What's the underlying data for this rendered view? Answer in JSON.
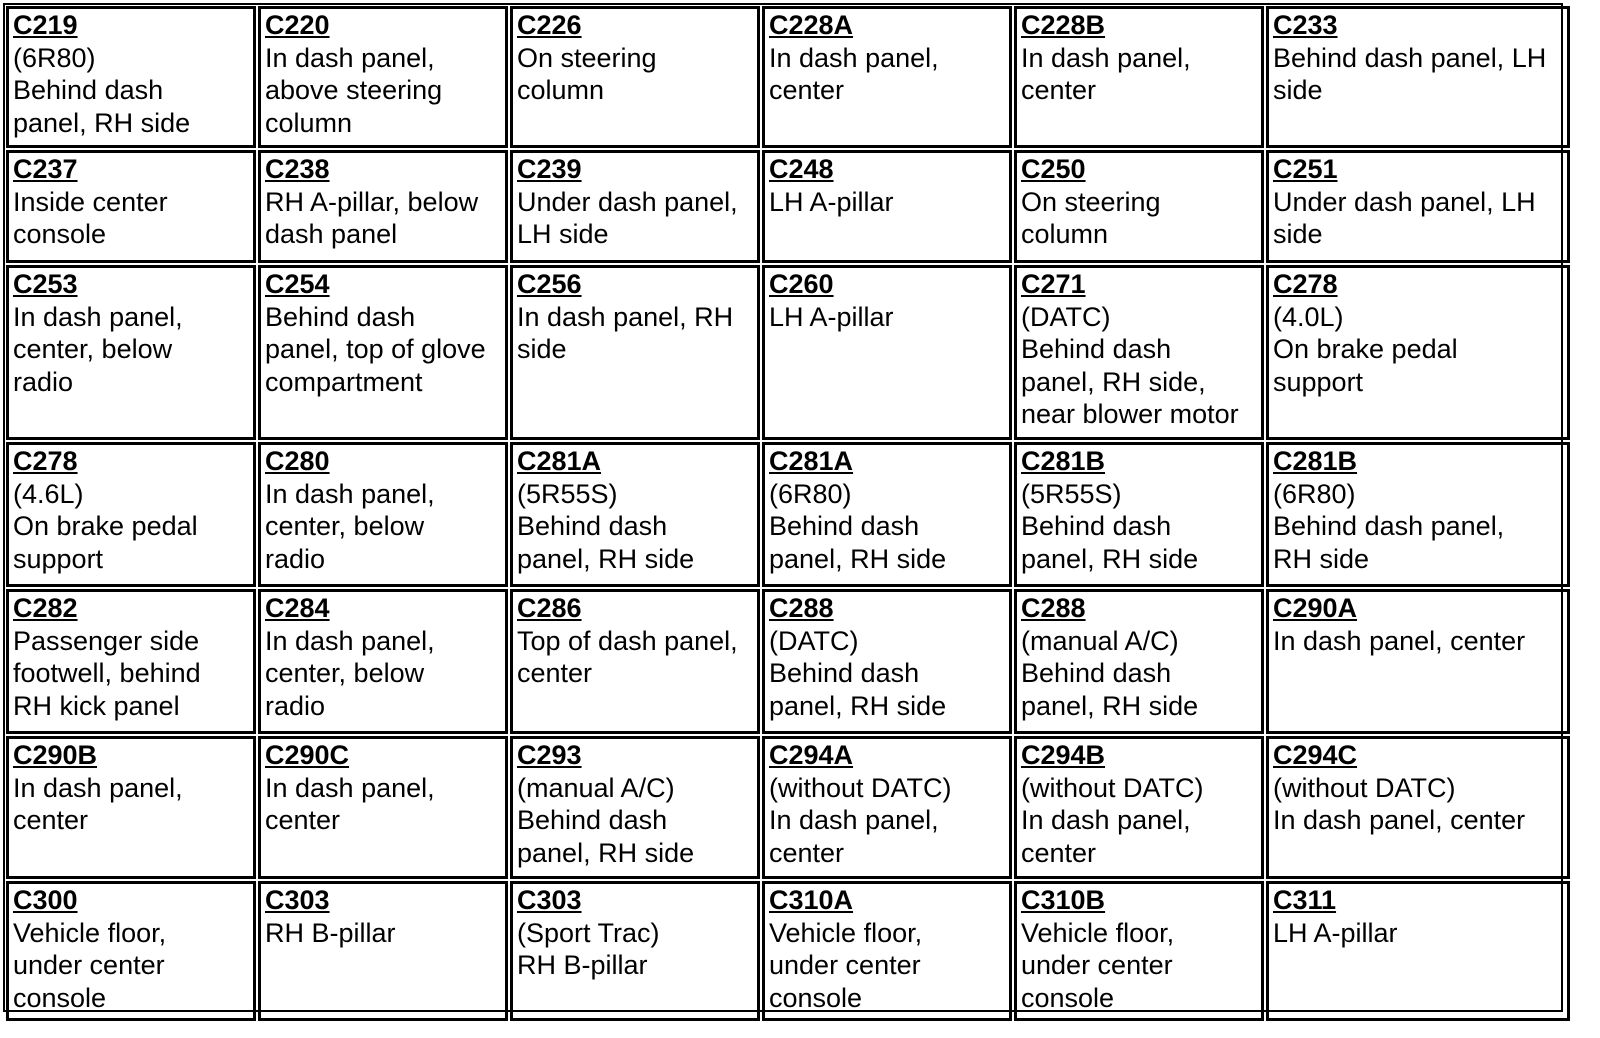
{
  "cells": [
    {
      "id": "C219",
      "lines": [
        "(6R80)",
        "Behind dash",
        "panel, RH side"
      ]
    },
    {
      "id": "C220",
      "lines": [
        "In dash panel,",
        "above steering",
        "column"
      ]
    },
    {
      "id": "C226",
      "lines": [
        "On steering",
        "column"
      ]
    },
    {
      "id": "C228A",
      "lines": [
        "In dash panel,",
        "center"
      ]
    },
    {
      "id": "C228B",
      "lines": [
        "In dash panel,",
        "center"
      ]
    },
    {
      "id": "C233",
      "lines": [
        "Behind dash panel, LH",
        "side"
      ]
    },
    {
      "id": "C237",
      "lines": [
        "Inside center",
        "console"
      ]
    },
    {
      "id": "C238",
      "lines": [
        "RH A-pillar, below",
        "dash panel"
      ]
    },
    {
      "id": "C239",
      "lines": [
        "Under dash panel,",
        "LH side"
      ]
    },
    {
      "id": "C248",
      "lines": [
        "LH A-pillar"
      ]
    },
    {
      "id": "C250",
      "lines": [
        "On steering",
        "column"
      ]
    },
    {
      "id": "C251",
      "lines": [
        "Under dash panel, LH",
        "side"
      ]
    },
    {
      "id": "C253",
      "lines": [
        "In dash panel,",
        "center, below",
        "radio"
      ]
    },
    {
      "id": "C254",
      "lines": [
        "Behind dash",
        "panel, top of glove",
        "compartment"
      ]
    },
    {
      "id": "C256",
      "lines": [
        "In dash panel, RH",
        "side"
      ]
    },
    {
      "id": "C260",
      "lines": [
        "LH A-pillar"
      ]
    },
    {
      "id": "C271",
      "lines": [
        "(DATC)",
        "Behind dash",
        "panel, RH side,",
        "near blower motor"
      ]
    },
    {
      "id": "C278",
      "lines": [
        "(4.0L)",
        "On brake pedal",
        "support"
      ]
    },
    {
      "id": "C278",
      "lines": [
        "(4.6L)",
        "On brake pedal",
        "support"
      ]
    },
    {
      "id": "C280",
      "lines": [
        "In dash panel,",
        "center, below",
        "radio"
      ]
    },
    {
      "id": "C281A",
      "lines": [
        "(5R55S)",
        "Behind dash",
        "panel, RH side"
      ]
    },
    {
      "id": "C281A",
      "lines": [
        "(6R80)",
        "Behind dash",
        "panel, RH side"
      ]
    },
    {
      "id": "C281B",
      "lines": [
        "(5R55S)",
        "Behind dash",
        "panel, RH side"
      ]
    },
    {
      "id": "C281B",
      "lines": [
        "(6R80)",
        "Behind dash panel,",
        "RH side"
      ]
    },
    {
      "id": "C282",
      "lines": [
        "Passenger side",
        "footwell, behind",
        "RH kick panel"
      ]
    },
    {
      "id": "C284",
      "lines": [
        "In dash panel,",
        "center, below",
        "radio"
      ]
    },
    {
      "id": "C286",
      "lines": [
        "Top of dash panel,",
        "center"
      ]
    },
    {
      "id": "C288",
      "lines": [
        "(DATC)",
        "Behind dash",
        "panel, RH side"
      ]
    },
    {
      "id": "C288",
      "lines": [
        "(manual A/C)",
        "Behind dash",
        "panel, RH side"
      ]
    },
    {
      "id": "C290A",
      "lines": [
        "In dash panel, center"
      ]
    },
    {
      "id": "C290B",
      "lines": [
        "In dash panel,",
        "center"
      ]
    },
    {
      "id": "C290C",
      "lines": [
        "In dash panel,",
        "center"
      ]
    },
    {
      "id": "C293",
      "lines": [
        "(manual A/C)",
        "Behind dash",
        "panel, RH side"
      ]
    },
    {
      "id": "C294A",
      "lines": [
        "(without DATC)",
        "In dash panel,",
        "center"
      ]
    },
    {
      "id": "C294B",
      "lines": [
        "(without DATC)",
        "In dash panel,",
        "center"
      ]
    },
    {
      "id": "C294C",
      "lines": [
        "(without DATC)",
        "In dash panel, center"
      ]
    },
    {
      "id": "C300",
      "lines": [
        "Vehicle floor,",
        "under center",
        "console"
      ]
    },
    {
      "id": "C303",
      "lines": [
        "RH B-pillar"
      ]
    },
    {
      "id": "C303",
      "lines": [
        "(Sport Trac)",
        "RH B-pillar"
      ]
    },
    {
      "id": "C310A",
      "lines": [
        "Vehicle floor,",
        "under center",
        "console"
      ]
    },
    {
      "id": "C310B",
      "lines": [
        "Vehicle floor,",
        "under center",
        "console"
      ]
    },
    {
      "id": "C311",
      "lines": [
        "LH A-pillar"
      ]
    }
  ]
}
